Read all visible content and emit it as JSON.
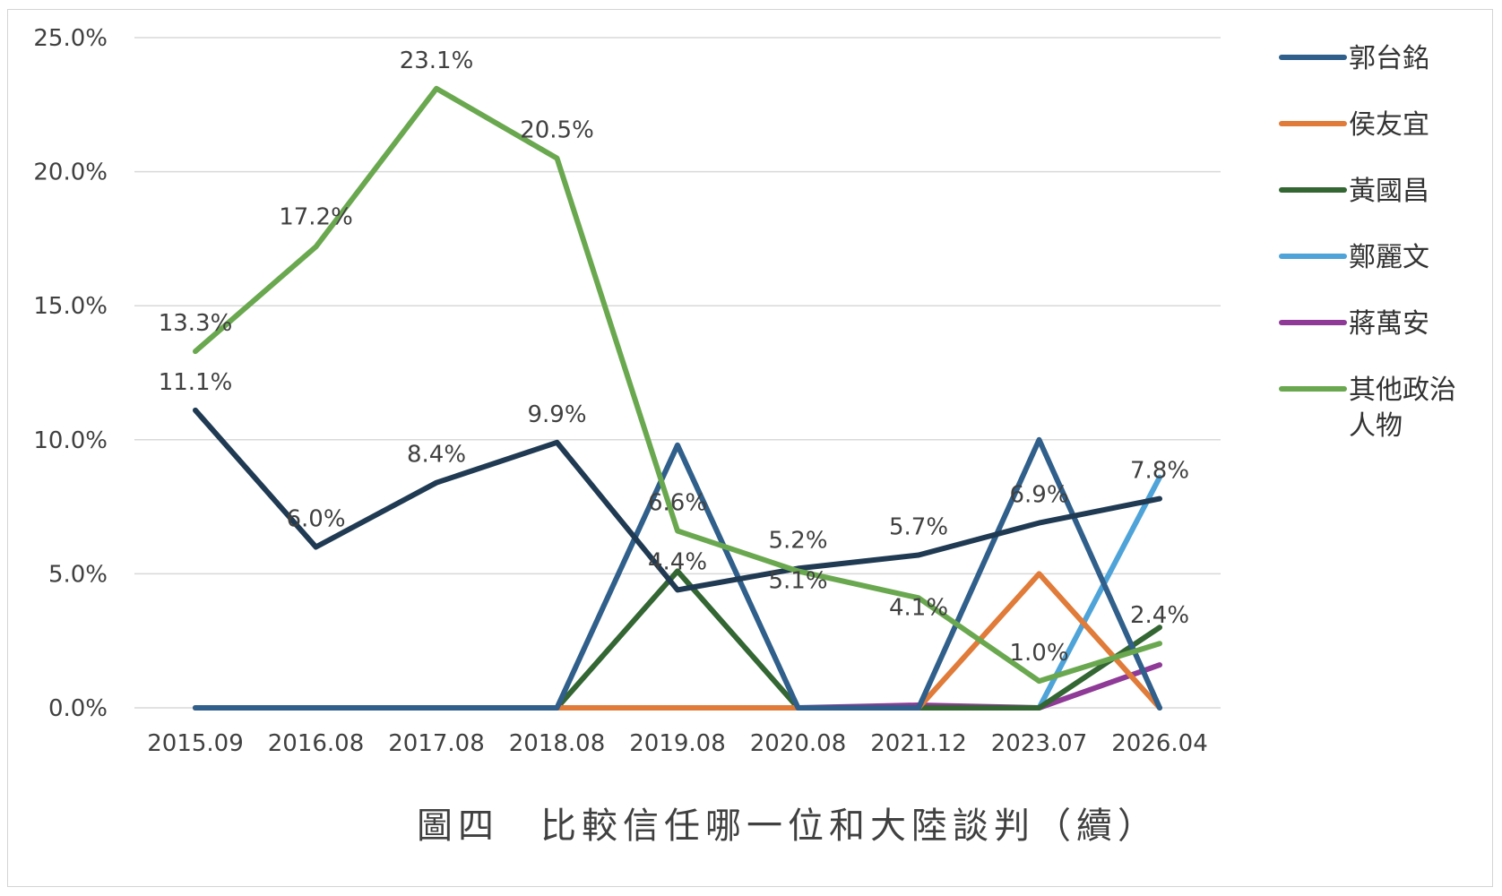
{
  "chart_data": {
    "type": "line",
    "title": "",
    "caption": "圖四　比較信任哪一位和大陸談判（續）",
    "xlabel": "",
    "ylabel": "",
    "categories": [
      "2015.09",
      "2016.08",
      "2017.08",
      "2018.08",
      "2019.08",
      "2020.08",
      "2021.12",
      "2023.07",
      "2026.04"
    ],
    "y_ticks": [
      "0.0%",
      "5.0%",
      "10.0%",
      "15.0%",
      "20.0%",
      "25.0%"
    ],
    "ylim": [
      0,
      25
    ],
    "grid": true,
    "legend_position": "right",
    "legend_order": [
      "郭台銘",
      "侯友宜",
      "黃國昌",
      "鄭麗文",
      "蔣萬安",
      "其他政治人物"
    ],
    "series": [
      {
        "name": "其他政治人物",
        "color": "#6aa84f",
        "values": [
          13.3,
          17.2,
          23.1,
          20.5,
          6.6,
          5.1,
          4.1,
          1.0,
          2.4
        ],
        "labels": [
          "13.3%",
          "17.2%",
          "23.1%",
          "20.5%",
          "6.6%",
          "5.1%",
          "4.1%",
          "1.0%",
          "2.4%"
        ]
      },
      {
        "name": "",
        "color": "#1f3a52",
        "values": [
          11.1,
          6.0,
          8.4,
          9.9,
          4.4,
          5.2,
          5.7,
          6.9,
          7.8
        ],
        "labels": [
          "11.1%",
          "6.0%",
          "8.4%",
          "9.9%",
          "4.4%",
          "5.2%",
          "5.7%",
          "6.9%",
          "7.8%"
        ]
      },
      {
        "name": "郭台銘",
        "color": "#2f5f8a",
        "values": [
          0,
          0,
          0,
          0,
          9.8,
          0,
          0,
          10.0,
          0
        ],
        "labels": []
      },
      {
        "name": "侯友宜",
        "color": "#e07b39",
        "values": [
          0,
          0,
          0,
          0,
          0,
          0,
          0,
          5.0,
          0
        ],
        "labels": []
      },
      {
        "name": "黃國昌",
        "color": "#336633",
        "values": [
          0,
          0,
          0,
          0,
          5.1,
          0,
          0,
          0,
          3.0
        ],
        "labels": []
      },
      {
        "name": "鄭麗文",
        "color": "#4ea3d8",
        "values": [
          0,
          0,
          0,
          0,
          0,
          0,
          0,
          0,
          8.6
        ],
        "labels": []
      },
      {
        "name": "蔣萬安",
        "color": "#8e3a96",
        "values": [
          0,
          0,
          0,
          0,
          0,
          0,
          0.1,
          0,
          1.6
        ],
        "labels": []
      }
    ]
  }
}
